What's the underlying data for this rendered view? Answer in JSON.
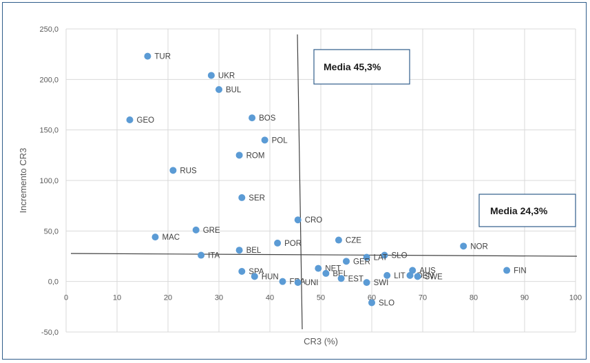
{
  "chart_data": {
    "type": "scatter",
    "xlabel": "CR3 (%)",
    "ylabel": "Incremento CR3",
    "xlim": [
      0,
      100
    ],
    "ylim": [
      -50,
      250
    ],
    "x_ticks": [
      0,
      10,
      20,
      30,
      40,
      50,
      60,
      70,
      80,
      90,
      100
    ],
    "y_ticks": [
      -50,
      0,
      50,
      100,
      150,
      200,
      250
    ],
    "x_tick_labels": [
      "0",
      "10",
      "20",
      "30",
      "40",
      "50",
      "60",
      "70",
      "80",
      "90",
      "100"
    ],
    "y_tick_labels": [
      "-50,0",
      "0,0",
      "50,0",
      "100,0",
      "150,0",
      "200,0",
      "250,0"
    ],
    "grid": true,
    "marker_color": "#5b9bd5",
    "points": [
      {
        "label": "TUR",
        "x": 16,
        "y": 223
      },
      {
        "label": "UKR",
        "x": 28.5,
        "y": 204
      },
      {
        "label": "BUL",
        "x": 30,
        "y": 190
      },
      {
        "label": "GEO",
        "x": 12.5,
        "y": 160
      },
      {
        "label": "BOS",
        "x": 36.5,
        "y": 162
      },
      {
        "label": "POL",
        "x": 39,
        "y": 140
      },
      {
        "label": "ROM",
        "x": 34,
        "y": 125
      },
      {
        "label": "RUS",
        "x": 21,
        "y": 110
      },
      {
        "label": "SER",
        "x": 34.5,
        "y": 83
      },
      {
        "label": "CRO",
        "x": 45.5,
        "y": 61
      },
      {
        "label": "GRE",
        "x": 25.5,
        "y": 51
      },
      {
        "label": "MAC",
        "x": 17.5,
        "y": 44
      },
      {
        "label": "CZE",
        "x": 53.5,
        "y": 41
      },
      {
        "label": "POR",
        "x": 41.5,
        "y": 38
      },
      {
        "label": "NOR",
        "x": 78,
        "y": 35
      },
      {
        "label": "BEL",
        "x": 34,
        "y": 31
      },
      {
        "label": "ITA",
        "x": 26.5,
        "y": 26
      },
      {
        "label": "SLO",
        "x": 62.5,
        "y": 26
      },
      {
        "label": "LAT",
        "x": 59,
        "y": 24
      },
      {
        "label": "GER",
        "x": 55,
        "y": 20
      },
      {
        "label": "NET",
        "x": 49.5,
        "y": 13
      },
      {
        "label": "BEL",
        "x": 51,
        "y": 8
      },
      {
        "label": "EST",
        "x": 54,
        "y": 3
      },
      {
        "label": "FIN",
        "x": 86.5,
        "y": 11
      },
      {
        "label": "SPA",
        "x": 34.5,
        "y": 10
      },
      {
        "label": "AUS",
        "x": 68,
        "y": 11
      },
      {
        "label": "LIT",
        "x": 63,
        "y": 6
      },
      {
        "label": "DEN",
        "x": 67.5,
        "y": 6
      },
      {
        "label": "SWE",
        "x": 69,
        "y": 5
      },
      {
        "label": "HUN",
        "x": 37,
        "y": 5
      },
      {
        "label": "FRA",
        "x": 42.5,
        "y": 0
      },
      {
        "label": "UNI",
        "x": 45.5,
        "y": -1
      },
      {
        "label": "SWI",
        "x": 59,
        "y": -1
      },
      {
        "label": "SLO",
        "x": 60,
        "y": -21
      }
    ],
    "annotations": [
      "Media 45,3%",
      "Media 24,3%"
    ]
  }
}
